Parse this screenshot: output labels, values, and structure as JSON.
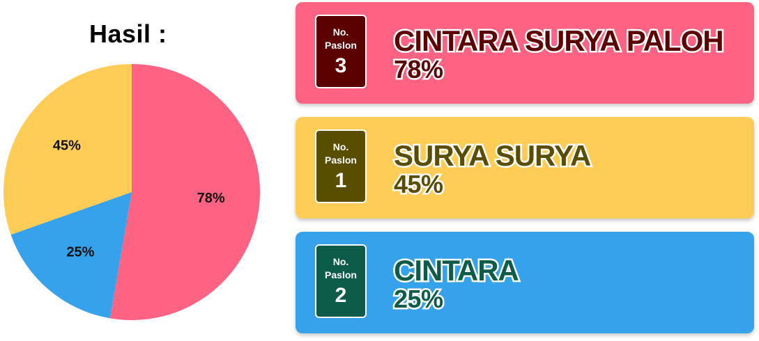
{
  "title": "Hasil :",
  "chart_data": {
    "type": "pie",
    "slices": [
      {
        "label": "78%",
        "value": 78,
        "color": "#FF6384"
      },
      {
        "label": "25%",
        "value": 25,
        "color": "#36A2EB"
      },
      {
        "label": "45%",
        "value": 45,
        "color": "#FFCD56"
      }
    ]
  },
  "candidates": [
    {
      "badge_label": "No. Paslon",
      "number": "3",
      "name": "CINTARA SURYA PALOH",
      "percent": "78%",
      "bg": "#FF6384",
      "dark": "#5C0000"
    },
    {
      "badge_label": "No. Paslon",
      "number": "1",
      "name": "SURYA SURYA",
      "percent": "45%",
      "bg": "#FFCD56",
      "dark": "#5A4D00"
    },
    {
      "badge_label": "No. Paslon",
      "number": "2",
      "name": "CINTARA",
      "percent": "25%",
      "bg": "#36A2EB",
      "dark": "#0D5C4A"
    }
  ]
}
